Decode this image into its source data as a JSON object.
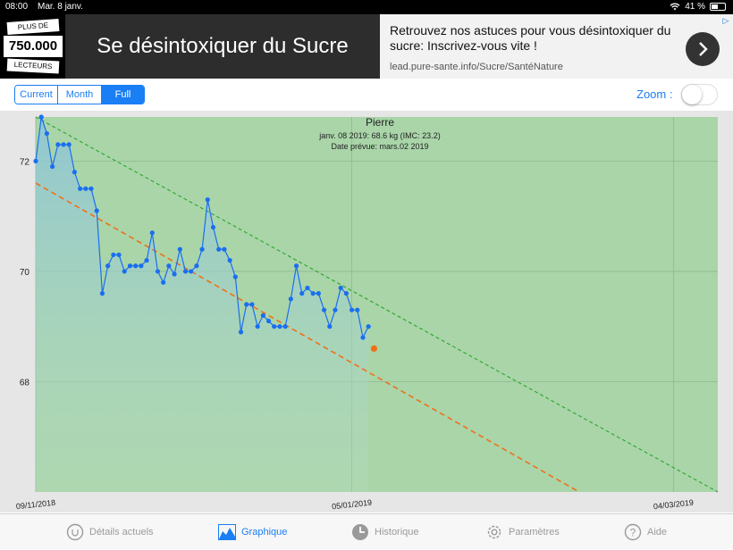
{
  "status_bar": {
    "time": "08:00",
    "date": "Mar. 8 janv.",
    "battery": "41 %",
    "battery_level": 0.41
  },
  "ad": {
    "badge_top": "PLUS DE",
    "badge_number": "750.000",
    "badge_bottom": "LECTEURS",
    "banner_text": "Se désintoxiquer du Sucre",
    "promo_text": "Retrouvez nos astuces pour vous désintoxiquer du sucre: Inscrivez-vous vite !",
    "url": "lead.pure-sante.info/Sucre/SantéNature",
    "go_icon": "chevron-right-icon",
    "adchoices_icon": "adchoices-icon"
  },
  "toolbar": {
    "segments": [
      "Current",
      "Month",
      "Full"
    ],
    "active_segment": "Full",
    "zoom_label": "Zoom :",
    "zoom_enabled": false
  },
  "chart_data": {
    "type": "line",
    "title": "Pierre",
    "subtitle": "janv. 08 2019: 68.6 kg (IMC: 23.2)",
    "subtitle2": "Date prévue: mars.02 2019",
    "x_tick_labels": [
      "09/11/2018",
      "05/01/2019",
      "04/03/2019"
    ],
    "y_tick_labels": [
      "68",
      "70",
      "72"
    ],
    "ylim": [
      66.0,
      72.8
    ],
    "xlim": [
      0,
      123
    ],
    "grid": true,
    "series": [
      {
        "values": [
          [
            0,
            72.0
          ],
          [
            1,
            72.8
          ],
          [
            2,
            72.5
          ],
          [
            3,
            71.9
          ],
          [
            4,
            72.3
          ],
          [
            5,
            72.3
          ],
          [
            6,
            72.3
          ],
          [
            7,
            71.8
          ],
          [
            8,
            71.5
          ],
          [
            9,
            71.5
          ],
          [
            10,
            71.5
          ],
          [
            11,
            71.1
          ],
          [
            12,
            69.6
          ],
          [
            13,
            70.1
          ],
          [
            14,
            70.3
          ],
          [
            15,
            70.3
          ],
          [
            16,
            70.0
          ],
          [
            17,
            70.1
          ],
          [
            18,
            70.1
          ],
          [
            19,
            70.1
          ],
          [
            20,
            70.2
          ],
          [
            21,
            70.7
          ],
          [
            22,
            70.0
          ],
          [
            23,
            69.8
          ],
          [
            24,
            70.1
          ],
          [
            25,
            69.95
          ],
          [
            26,
            70.4
          ],
          [
            27,
            70.0
          ],
          [
            28,
            70.0
          ],
          [
            29,
            70.1
          ],
          [
            30,
            70.4
          ],
          [
            31,
            71.3
          ],
          [
            32,
            70.8
          ],
          [
            33,
            70.4
          ],
          [
            34,
            70.4
          ],
          [
            35,
            70.2
          ],
          [
            36,
            69.9
          ],
          [
            37,
            68.9
          ],
          [
            38,
            69.4
          ],
          [
            39,
            69.4
          ],
          [
            40,
            69.0
          ],
          [
            41,
            69.2
          ],
          [
            42,
            69.1
          ],
          [
            43,
            69.0
          ],
          [
            44,
            69.0
          ],
          [
            45,
            69.0
          ],
          [
            46,
            69.5
          ],
          [
            47,
            70.1
          ],
          [
            48,
            69.6
          ],
          [
            49,
            69.7
          ],
          [
            50,
            69.6
          ],
          [
            51,
            69.6
          ],
          [
            52,
            69.3
          ],
          [
            53,
            69.0
          ],
          [
            54,
            69.3
          ],
          [
            55,
            69.7
          ],
          [
            56,
            69.6
          ],
          [
            57,
            69.3
          ],
          [
            58,
            69.3
          ],
          [
            59,
            68.8
          ],
          [
            60,
            69.0
          ]
        ],
        "color": "#1a6ef0"
      }
    ],
    "latest_point": [
      61,
      68.6
    ],
    "latest_point_color": "#f07018",
    "trend_lines": [
      {
        "from": [
          0,
          71.6
        ],
        "to": [
          98,
          66.0
        ],
        "color": "#f07018",
        "style": "dashed"
      },
      {
        "from": [
          0,
          72.8
        ],
        "to": [
          123,
          66.0
        ],
        "color": "#2aa52a",
        "style": "dashed"
      }
    ],
    "plot_bg": "#a9d5a9"
  },
  "tabs": [
    {
      "label": "Détails actuels",
      "icon": "face-icon",
      "active": false
    },
    {
      "label": "Graphique",
      "icon": "chart-icon",
      "active": true
    },
    {
      "label": "Historique",
      "icon": "clock-icon",
      "active": false
    },
    {
      "label": "Paramètres",
      "icon": "gear-icon",
      "active": false
    },
    {
      "label": "Aide",
      "icon": "help-icon",
      "active": false
    }
  ]
}
